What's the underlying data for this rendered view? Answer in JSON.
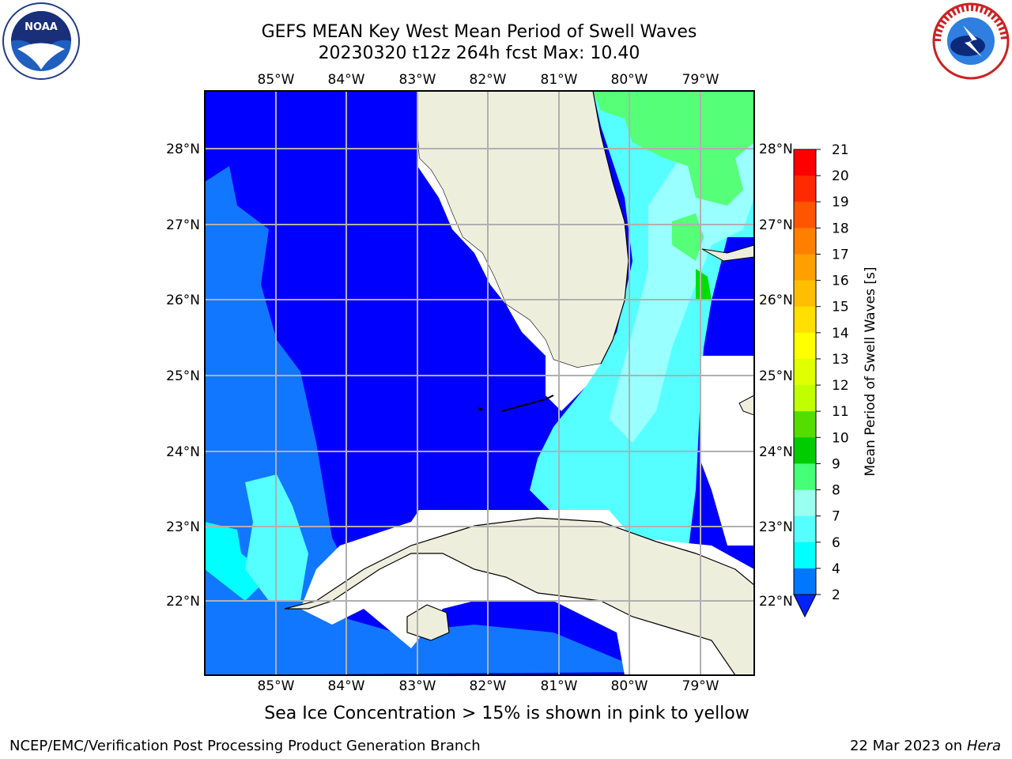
{
  "title_line1": "GEFS MEAN Key West Mean Period of Swell Waves",
  "title_line2": "20230320 t12z 264h fcst   Max: 10.40",
  "note": "Sea Ice Concentration > 15% is shown in pink to yellow",
  "footer_left": "NCEP/EMC/Verification Post Processing Product Generation Branch",
  "footer_date": "22 Mar 2023 on",
  "footer_host": "Hera",
  "logos": {
    "left": "NOAA",
    "right": "NATIONAL WEATHER SERVICE"
  },
  "lon_labels": [
    "85°W",
    "84°W",
    "83°W",
    "82°W",
    "81°W",
    "80°W",
    "79°W"
  ],
  "lat_labels": [
    "28°N",
    "27°N",
    "26°N",
    "25°N",
    "24°N",
    "23°N",
    "22°N"
  ],
  "colorbar": {
    "label": "Mean Period of Swell Waves [s]",
    "ticks": [
      "21",
      "20",
      "19",
      "18",
      "17",
      "16",
      "15",
      "14",
      "13",
      "12",
      "11",
      "10",
      "9",
      "8",
      "7",
      "6",
      "4",
      "2"
    ],
    "colors": [
      "#ff0000",
      "#ff2a00",
      "#ff5500",
      "#ff7f00",
      "#ff9f00",
      "#ffbf00",
      "#ffdf00",
      "#ffff00",
      "#e0ff00",
      "#bfff00",
      "#55dd00",
      "#00cc00",
      "#44ff77",
      "#99ffee",
      "#55ffff",
      "#00ffff",
      "#0077ff",
      "#0022ff"
    ]
  },
  "palette": {
    "deep_blue": "#0000ff",
    "blue": "#1177ff",
    "light_blue": "#0099ff",
    "cyan": "#00ffff",
    "pale_cyan": "#55ffff",
    "aqua": "#99ffff",
    "green": "#55ff77",
    "land": "#eeeedd",
    "grid": "#b0b0b0"
  }
}
